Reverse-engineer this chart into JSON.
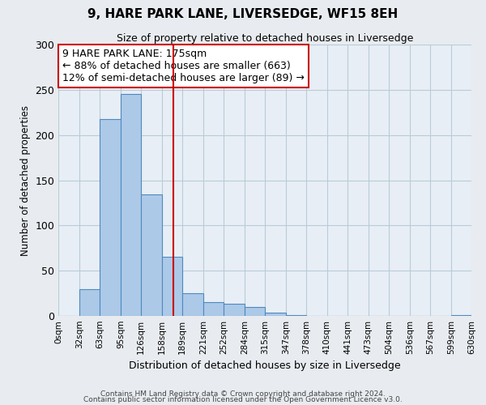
{
  "title": "9, HARE PARK LANE, LIVERSEDGE, WF15 8EH",
  "subtitle": "Size of property relative to detached houses in Liversedge",
  "xlabel": "Distribution of detached houses by size in Liversedge",
  "ylabel": "Number of detached properties",
  "bin_edges": [
    0,
    32,
    63,
    95,
    126,
    158,
    189,
    221,
    252,
    284,
    315,
    347,
    378,
    410,
    441,
    473,
    504,
    536,
    567,
    599,
    630
  ],
  "bin_labels": [
    "0sqm",
    "32sqm",
    "63sqm",
    "95sqm",
    "126sqm",
    "158sqm",
    "189sqm",
    "221sqm",
    "252sqm",
    "284sqm",
    "315sqm",
    "347sqm",
    "378sqm",
    "410sqm",
    "441sqm",
    "473sqm",
    "504sqm",
    "536sqm",
    "567sqm",
    "599sqm",
    "630sqm"
  ],
  "counts": [
    0,
    30,
    218,
    245,
    134,
    65,
    25,
    15,
    13,
    10,
    4,
    1,
    0,
    0,
    0,
    0,
    0,
    0,
    0,
    1
  ],
  "bar_color": "#adc9e8",
  "bar_edge_color": "#4d8abf",
  "vline_x": 175,
  "vline_color": "#cc0000",
  "annotation_line1": "9 HARE PARK LANE: 175sqm",
  "annotation_line2": "← 88% of detached houses are smaller (663)",
  "annotation_line3": "12% of semi-detached houses are larger (89) →",
  "annotation_box_color": "#ffffff",
  "annotation_box_edge_color": "#cc0000",
  "ylim": [
    0,
    300
  ],
  "yticks": [
    0,
    50,
    100,
    150,
    200,
    250,
    300
  ],
  "footnote1": "Contains HM Land Registry data © Crown copyright and database right 2024.",
  "footnote2": "Contains public sector information licensed under the Open Government Licence v3.0.",
  "bg_color": "#e8ecf0",
  "plot_bg_color": "#e8eef5",
  "grid_color": "#b8ccd8"
}
